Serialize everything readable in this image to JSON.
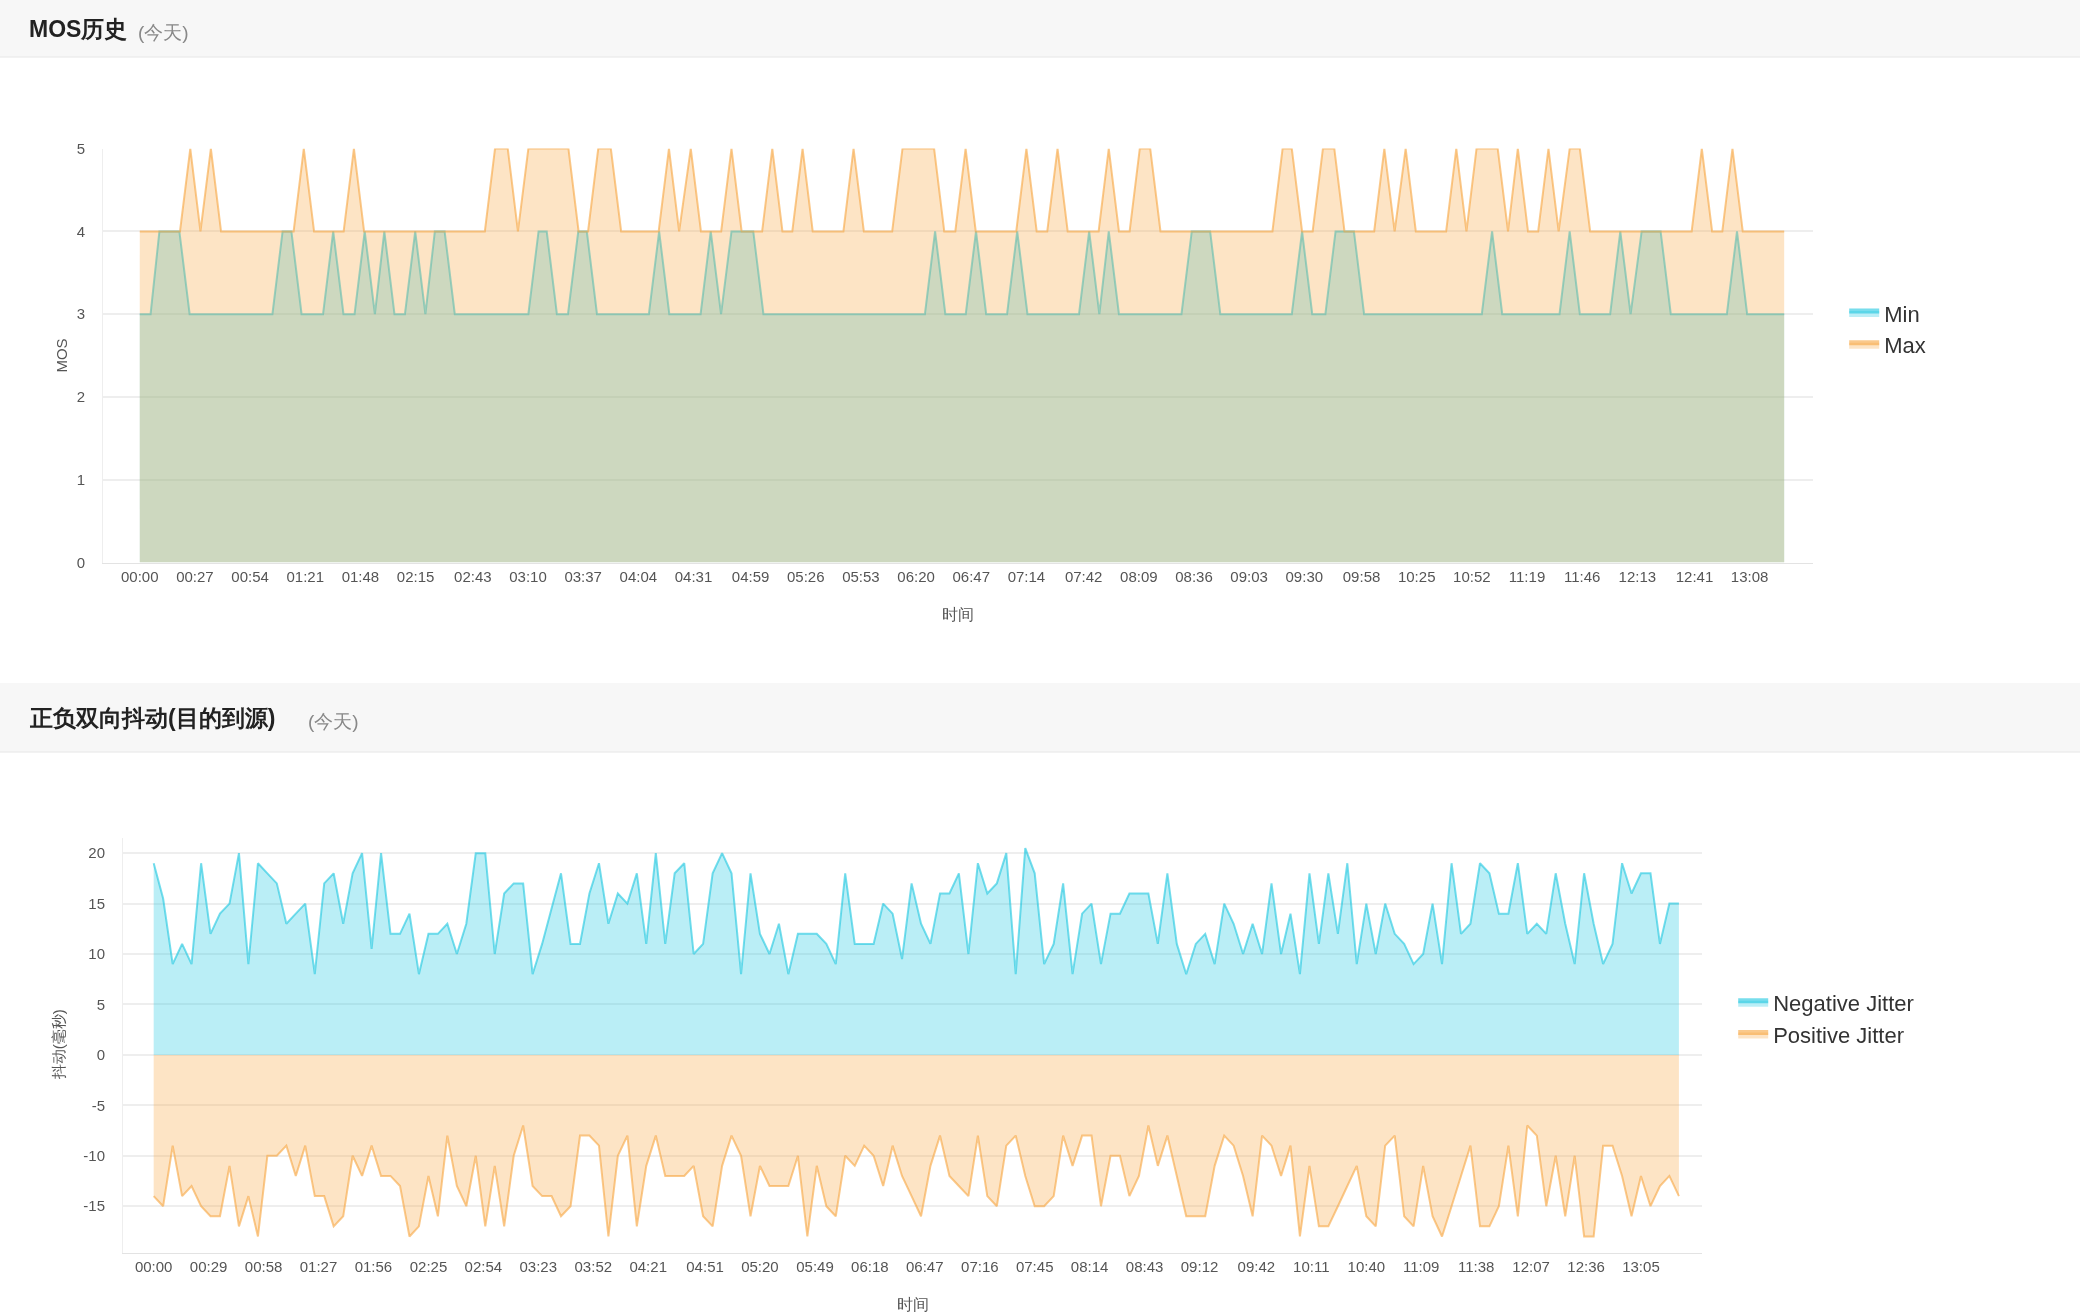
{
  "chart_data": [
    {
      "type": "area",
      "title": "MOS历史",
      "subtitle": "(今天)",
      "xlabel": "时间",
      "ylabel": "MOS",
      "series": [
        {
          "name": "Min",
          "color": "#1cc7e0",
          "x": [
            0,
            0.088,
            0.16,
            0.323,
            0.407,
            1.082,
            1.165,
            1.237,
            1.32,
            1.495,
            1.578,
            1.662,
            1.752,
            1.835,
            1.918,
            1.995,
            2.078,
            2.163,
            2.247,
            2.33,
            2.407,
            2.487,
            2.57,
            3.17,
            3.253,
            3.32,
            3.403,
            3.493,
            3.577,
            3.647,
            3.73,
            4.153,
            4.237,
            4.32,
            4.575,
            4.658,
            4.742,
            4.827,
            5.005,
            5.088,
            6.405,
            6.488,
            6.572,
            6.738,
            6.822,
            6.905,
            7.075,
            7.158,
            7.242,
            7.662,
            7.745,
            7.828,
            7.905,
            7.988,
            8.498,
            8.582,
            8.732,
            8.815,
            9.398,
            9.482,
            9.565,
            9.672,
            9.755,
            9.905,
            9.988,
            10.948,
            11.032,
            11.115,
            11.582,
            11.665,
            11.748,
            11.995,
            12.078,
            12.162,
            12.252,
            12.407,
            12.49,
            12.947,
            13.03,
            13.113,
            13.415
          ],
          "values": [
            3,
            3,
            4,
            4,
            3,
            3,
            4,
            4,
            3,
            3,
            4,
            3,
            3,
            4,
            3,
            4,
            3,
            3,
            4,
            3,
            4,
            4,
            3,
            3,
            4,
            4,
            3,
            3,
            4,
            4,
            3,
            3,
            4,
            3,
            3,
            4,
            3,
            4,
            4,
            3,
            3,
            4,
            3,
            3,
            4,
            3,
            3,
            4,
            3,
            3,
            4,
            3,
            4,
            3,
            3,
            4,
            4,
            3,
            3,
            4,
            3,
            3,
            4,
            4,
            3,
            3,
            4,
            3,
            3,
            4,
            3,
            3,
            4,
            3,
            4,
            4,
            3,
            3,
            4,
            3,
            3
          ]
        },
        {
          "name": "Max",
          "color": "#f7a540",
          "x": [
            0,
            0.328,
            0.412,
            0.495,
            0.58,
            0.663,
            1.255,
            1.338,
            1.422,
            1.663,
            1.747,
            1.83,
            2.815,
            2.898,
            3.002,
            3.085,
            3.17,
            3.497,
            3.58,
            3.657,
            3.74,
            3.843,
            3.927,
            4.233,
            4.317,
            4.4,
            4.495,
            4.578,
            4.743,
            4.827,
            4.91,
            5.077,
            5.16,
            5.243,
            5.323,
            5.407,
            5.49,
            5.74,
            5.823,
            5.907,
            6.138,
            6.222,
            6.48,
            6.563,
            6.653,
            6.737,
            6.82,
            7.15,
            7.233,
            7.317,
            7.403,
            7.487,
            7.57,
            7.822,
            7.905,
            7.988,
            8.075,
            8.158,
            8.243,
            8.327,
            9.24,
            9.323,
            9.398,
            9.482,
            9.568,
            9.652,
            9.745,
            9.828,
            10.07,
            10.153,
            10.237,
            10.327,
            10.41,
            10.657,
            10.74,
            10.823,
            10.905,
            11.078,
            11.162,
            11.242,
            11.325,
            11.408,
            11.492,
            11.575,
            11.665,
            11.748,
            11.832,
            12.66,
            12.743,
            12.827,
            12.91,
            12.993,
            13.077,
            13.415
          ],
          "values": [
            4,
            4,
            5,
            4,
            5,
            4,
            4,
            5,
            4,
            4,
            5,
            4,
            4,
            5,
            5,
            4,
            5,
            5,
            4,
            4,
            5,
            5,
            4,
            4,
            5,
            4,
            5,
            4,
            4,
            5,
            4,
            4,
            5,
            4,
            4,
            5,
            4,
            4,
            5,
            4,
            4,
            5,
            5,
            4,
            4,
            5,
            4,
            4,
            5,
            4,
            4,
            5,
            4,
            4,
            5,
            4,
            4,
            5,
            5,
            4,
            4,
            5,
            5,
            4,
            4,
            5,
            5,
            4,
            4,
            5,
            4,
            5,
            4,
            4,
            5,
            4,
            5,
            5,
            4,
            5,
            4,
            4,
            5,
            4,
            5,
            5,
            4,
            4,
            5,
            4,
            4,
            5,
            4,
            4
          ]
        }
      ],
      "xlim": [
        -0.3,
        13.65
      ],
      "xticks": [
        {
          "value": 0,
          "label": "00:00"
        },
        {
          "value": 0.45,
          "label": "00:27"
        },
        {
          "value": 0.9,
          "label": "00:54"
        },
        {
          "value": 1.35,
          "label": "01:21"
        },
        {
          "value": 1.8,
          "label": "01:48"
        },
        {
          "value": 2.25,
          "label": "02:15"
        },
        {
          "value": 2.717,
          "label": "02:43"
        },
        {
          "value": 3.167,
          "label": "03:10"
        },
        {
          "value": 3.617,
          "label": "03:37"
        },
        {
          "value": 4.067,
          "label": "04:04"
        },
        {
          "value": 4.517,
          "label": "04:31"
        },
        {
          "value": 4.983,
          "label": "04:59"
        },
        {
          "value": 5.433,
          "label": "05:26"
        },
        {
          "value": 5.883,
          "label": "05:53"
        },
        {
          "value": 6.333,
          "label": "06:20"
        },
        {
          "value": 6.783,
          "label": "06:47"
        },
        {
          "value": 7.233,
          "label": "07:14"
        },
        {
          "value": 7.7,
          "label": "07:42"
        },
        {
          "value": 8.15,
          "label": "08:09"
        },
        {
          "value": 8.6,
          "label": "08:36"
        },
        {
          "value": 9.05,
          "label": "09:03"
        },
        {
          "value": 9.5,
          "label": "09:30"
        },
        {
          "value": 9.967,
          "label": "09:58"
        },
        {
          "value": 10.417,
          "label": "10:25"
        },
        {
          "value": 10.867,
          "label": "10:52"
        },
        {
          "value": 11.317,
          "label": "11:19"
        },
        {
          "value": 11.767,
          "label": "11:46"
        },
        {
          "value": 12.217,
          "label": "12:13"
        },
        {
          "value": 12.683,
          "label": "12:41"
        },
        {
          "value": 13.133,
          "label": "13:08"
        }
      ],
      "ylim": [
        0,
        5
      ],
      "yticks": [
        0,
        1,
        2,
        3,
        4,
        5
      ],
      "grid": "y",
      "legend": "right"
    },
    {
      "type": "area",
      "title": "正负双向抖动(目的到源)",
      "subtitle": "(今天)",
      "xlabel": "时间",
      "ylabel": "抖动(毫秒)",
      "x": [
        0,
        0.083,
        0.167,
        0.25,
        0.333,
        0.417,
        0.5,
        0.583,
        0.667,
        0.75,
        0.833,
        0.917,
        1,
        1.083,
        1.167,
        1.25,
        1.333,
        1.417,
        1.5,
        1.583,
        1.667,
        1.75,
        1.833,
        1.917,
        2,
        2.083,
        2.167,
        2.25,
        2.333,
        2.417,
        2.5,
        2.583,
        2.667,
        2.75,
        2.833,
        2.917,
        3,
        3.083,
        3.167,
        3.25,
        3.333,
        3.417,
        3.5,
        3.583,
        3.667,
        3.75,
        3.833,
        3.917,
        4,
        4.083,
        4.167,
        4.25,
        4.333,
        4.417,
        4.5,
        4.583,
        4.667,
        4.75,
        4.833,
        4.917,
        5,
        5.083,
        5.167,
        5.25,
        5.333,
        5.417,
        5.5,
        5.583,
        5.667,
        5.75,
        5.833,
        5.917,
        6,
        6.083,
        6.167,
        6.25,
        6.333,
        6.417,
        6.5,
        6.583,
        6.667,
        6.75,
        6.833,
        6.917,
        7,
        7.083,
        7.167,
        7.25,
        7.333,
        7.417,
        7.5,
        7.583,
        7.667,
        7.75,
        7.833,
        7.917,
        8,
        8.083,
        8.167,
        8.25,
        8.333,
        8.417,
        8.5,
        8.583,
        8.667,
        8.75,
        8.833,
        8.917,
        9,
        9.083,
        9.167,
        9.25,
        9.333,
        9.417,
        9.5,
        9.583,
        9.667,
        9.75,
        9.833,
        9.917,
        10,
        10.083,
        10.167,
        10.25,
        10.333,
        10.417,
        10.5,
        10.583,
        10.667,
        10.75,
        10.833,
        10.917,
        11,
        11.083,
        11.167,
        11.25,
        11.333,
        11.417,
        11.5,
        11.583,
        11.667,
        11.75,
        11.833,
        11.917,
        12,
        12.083,
        12.167,
        12.25,
        12.333,
        12.417,
        12.5,
        12.583,
        12.667,
        12.75,
        12.833,
        12.917,
        13,
        13.083,
        13.167,
        13.25,
        13.333,
        13.417
      ],
      "series": [
        {
          "name": "Negative Jitter",
          "color": "#1cc7e0",
          "values": [
            19,
            15.5,
            9,
            11,
            9,
            19,
            12,
            14,
            15,
            20,
            9,
            19,
            18,
            17,
            13,
            14,
            15,
            8,
            17,
            18,
            13,
            18,
            20,
            10.5,
            20,
            12,
            12,
            14,
            8,
            12,
            12,
            13,
            10,
            13,
            20,
            20,
            10,
            16,
            17,
            17,
            8,
            11,
            14.5,
            18,
            11,
            11,
            16,
            19,
            13,
            16,
            15,
            18,
            11,
            20,
            11,
            18,
            19,
            10,
            11,
            18,
            20,
            18,
            8,
            18,
            12,
            10,
            13,
            8,
            12,
            12,
            12,
            11,
            9,
            18,
            11,
            11,
            11,
            15,
            14,
            9.5,
            17,
            13,
            11,
            16,
            16,
            18,
            10,
            19,
            16,
            17,
            20,
            8,
            20.5,
            18,
            9,
            11,
            17,
            8,
            14,
            15,
            9,
            14,
            14,
            16,
            16,
            16,
            11,
            18,
            11,
            8,
            11,
            12,
            9,
            15,
            13,
            10,
            13,
            10,
            17,
            10,
            14,
            8,
            18,
            11,
            18,
            12,
            19,
            9,
            15,
            10,
            15,
            12,
            11,
            9,
            10,
            15,
            9,
            19,
            12,
            13,
            19,
            18,
            14,
            14,
            19,
            12,
            13,
            12,
            18,
            13,
            9,
            18,
            13,
            9,
            11,
            19,
            16,
            18,
            18,
            11,
            15,
            15
          ]
        },
        {
          "name": "Positive Jitter",
          "color": "#f7a540",
          "values": [
            -14,
            -15,
            -9,
            -14,
            -13,
            -15,
            -16,
            -16,
            -11,
            -17,
            -14,
            -18,
            -10,
            -10,
            -9,
            -12,
            -9,
            -14,
            -14,
            -17,
            -16,
            -10,
            -12,
            -9,
            -12,
            -12,
            -13,
            -18,
            -17,
            -12,
            -16,
            -8,
            -13,
            -15,
            -10,
            -17,
            -11,
            -17,
            -10,
            -7,
            -13,
            -14,
            -14,
            -16,
            -15,
            -8,
            -8,
            -9,
            -18,
            -10,
            -8,
            -17,
            -11,
            -8,
            -12,
            -12,
            -12,
            -11,
            -16,
            -17,
            -11,
            -8,
            -10,
            -16,
            -11,
            -13,
            -13,
            -13,
            -10,
            -18,
            -11,
            -15,
            -16,
            -10,
            -11,
            -9,
            -10,
            -13,
            -9,
            -12,
            -14,
            -16,
            -11,
            -8,
            -12,
            -13,
            -14,
            -8,
            -14,
            -15,
            -9,
            -8,
            -12,
            -15,
            -15,
            -14,
            -8,
            -11,
            -8,
            -8,
            -15,
            -10,
            -10,
            -14,
            -12,
            -7,
            -11,
            -8,
            -12,
            -16,
            -16,
            -16,
            -11,
            -8,
            -9,
            -12,
            -16,
            -8,
            -9,
            -12,
            -9,
            -18,
            -11,
            -17,
            -17,
            -15,
            -13,
            -11,
            -16,
            -17,
            -9,
            -8,
            -16,
            -17,
            -11,
            -16,
            -18,
            -15,
            -12,
            -9,
            -17,
            -17,
            -15,
            -9,
            -16,
            -7,
            -8,
            -15,
            -10,
            -16,
            -10,
            -18,
            -18,
            -9,
            -9,
            -12,
            -16,
            -12,
            -15,
            -13,
            -12,
            -14
          ]
        }
      ],
      "xlim": [
        -0.27,
        13.62
      ],
      "xticks": [
        {
          "value": 0,
          "label": "00:00"
        },
        {
          "value": 0.483,
          "label": "00:29"
        },
        {
          "value": 0.967,
          "label": "00:58"
        },
        {
          "value": 1.45,
          "label": "01:27"
        },
        {
          "value": 1.933,
          "label": "01:56"
        },
        {
          "value": 2.417,
          "label": "02:25"
        },
        {
          "value": 2.9,
          "label": "02:54"
        },
        {
          "value": 3.383,
          "label": "03:23"
        },
        {
          "value": 3.867,
          "label": "03:52"
        },
        {
          "value": 4.35,
          "label": "04:21"
        },
        {
          "value": 4.85,
          "label": "04:51"
        },
        {
          "value": 5.333,
          "label": "05:20"
        },
        {
          "value": 5.817,
          "label": "05:49"
        },
        {
          "value": 6.3,
          "label": "06:18"
        },
        {
          "value": 6.783,
          "label": "06:47"
        },
        {
          "value": 7.267,
          "label": "07:16"
        },
        {
          "value": 7.75,
          "label": "07:45"
        },
        {
          "value": 8.233,
          "label": "08:14"
        },
        {
          "value": 8.717,
          "label": "08:43"
        },
        {
          "value": 9.2,
          "label": "09:12"
        },
        {
          "value": 9.7,
          "label": "09:42"
        },
        {
          "value": 10.183,
          "label": "10:11"
        },
        {
          "value": 10.667,
          "label": "10:40"
        },
        {
          "value": 11.15,
          "label": "11:09"
        },
        {
          "value": 11.633,
          "label": "11:38"
        },
        {
          "value": 12.117,
          "label": "12:07"
        },
        {
          "value": 12.6,
          "label": "12:36"
        },
        {
          "value": 13.083,
          "label": "13:05"
        }
      ],
      "ylim": [
        -19.6,
        21.5
      ],
      "yticks": [
        -15,
        -10,
        -5,
        0,
        5,
        10,
        15,
        20
      ],
      "grid": "y",
      "legend": "right"
    }
  ]
}
